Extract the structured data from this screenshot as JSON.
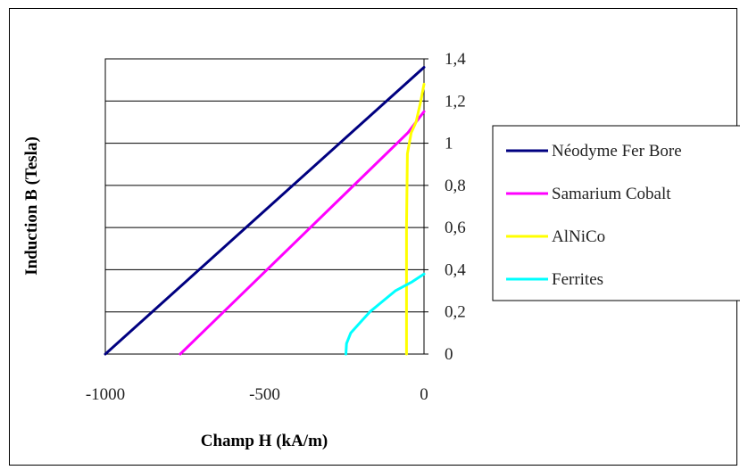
{
  "chart_data": {
    "type": "line",
    "title": "",
    "xlabel": "Champ H (kA/m)",
    "ylabel": "Induction B (Tesla)",
    "xlim": [
      -1000,
      0
    ],
    "ylim": [
      0,
      1.4
    ],
    "x_ticks": [
      {
        "value": -1000,
        "label": "-1000"
      },
      {
        "value": -500,
        "label": "-500"
      },
      {
        "value": 0,
        "label": "0"
      }
    ],
    "y_ticks": [
      {
        "value": 0,
        "label": "0"
      },
      {
        "value": 0.2,
        "label": "0,2"
      },
      {
        "value": 0.4,
        "label": "0,4"
      },
      {
        "value": 0.6,
        "label": "0,6"
      },
      {
        "value": 0.8,
        "label": "0,8"
      },
      {
        "value": 1.0,
        "label": "1"
      },
      {
        "value": 1.2,
        "label": "1,2"
      },
      {
        "value": 1.4,
        "label": "1,4"
      }
    ],
    "y_axis_position": "right",
    "grid": {
      "horizontal": true,
      "vertical": false
    },
    "legend_position": "right",
    "series": [
      {
        "name": "Néodyme Fer Bore",
        "color": "#000080",
        "points": [
          [
            -1000,
            0
          ],
          [
            0,
            1.36
          ]
        ]
      },
      {
        "name": "Samarium Cobalt",
        "color": "#ff00ff",
        "points": [
          [
            -765,
            0
          ],
          [
            -50,
            1.05
          ],
          [
            0,
            1.15
          ]
        ]
      },
      {
        "name": "AlNiCo",
        "color": "#ffff00",
        "points": [
          [
            -55,
            0
          ],
          [
            -55,
            0.3
          ],
          [
            -55,
            0.6
          ],
          [
            -52,
            0.95
          ],
          [
            -40,
            1.05
          ],
          [
            -25,
            1.1
          ],
          [
            -10,
            1.2
          ],
          [
            0,
            1.28
          ]
        ]
      },
      {
        "name": "Ferrites",
        "color": "#00ffff",
        "points": [
          [
            -245,
            0
          ],
          [
            -243,
            0.05
          ],
          [
            -230,
            0.1
          ],
          [
            -200,
            0.15
          ],
          [
            -170,
            0.2
          ],
          [
            -130,
            0.25
          ],
          [
            -90,
            0.3
          ],
          [
            -40,
            0.34
          ],
          [
            0,
            0.38
          ]
        ]
      }
    ]
  }
}
